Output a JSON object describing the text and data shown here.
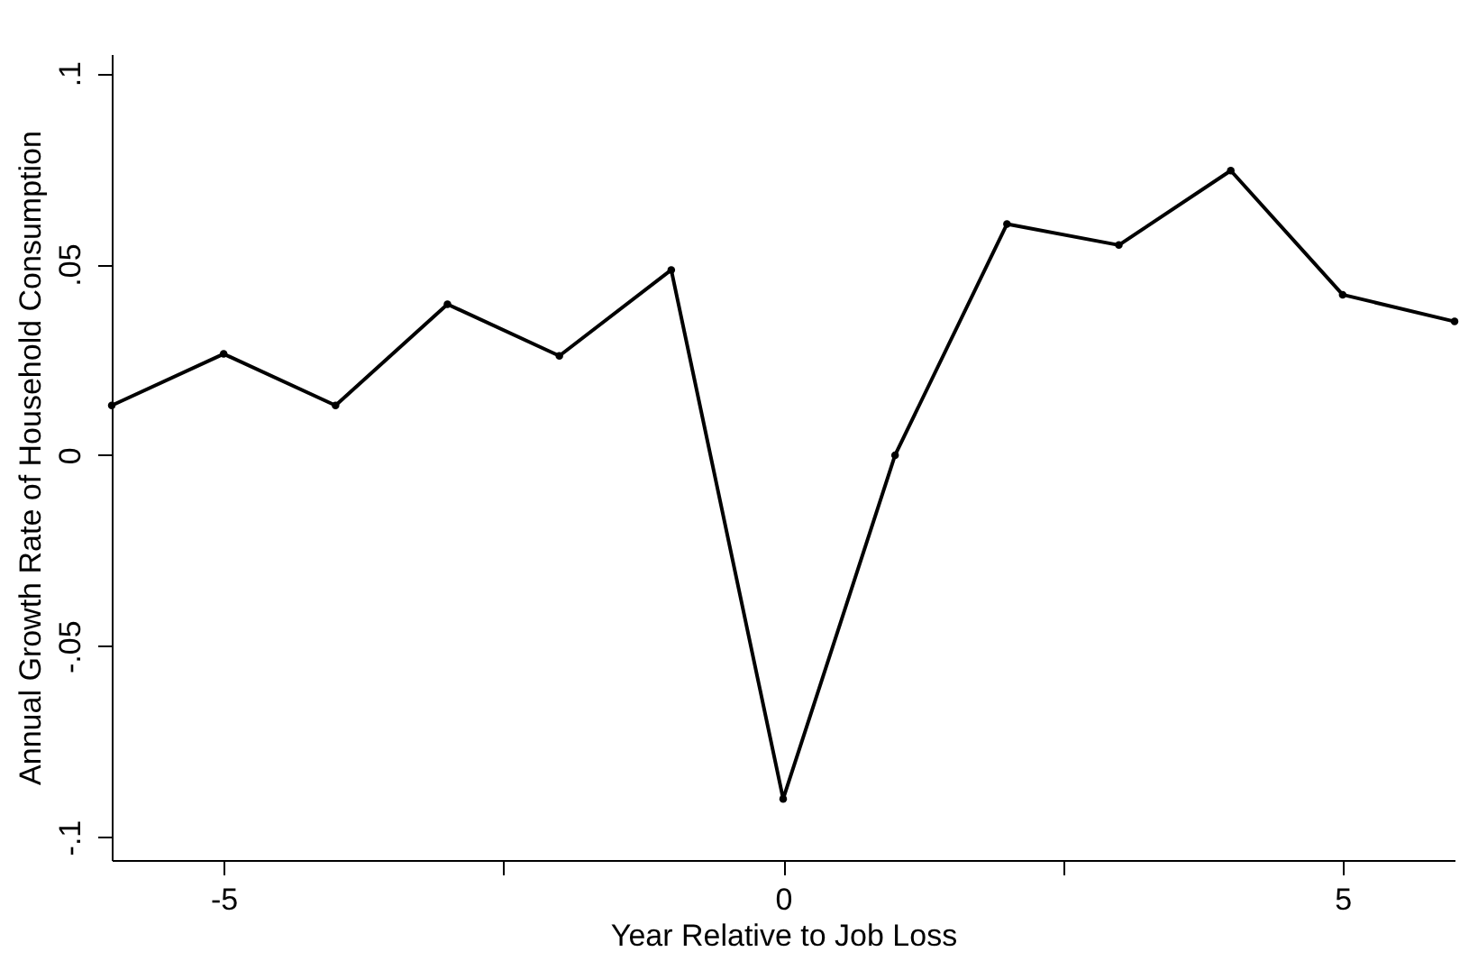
{
  "chart_data": {
    "type": "line",
    "xlabel": "Year Relative to Job Loss",
    "ylabel": "Annual Growth Rate of Household Consumption",
    "x": [
      -6,
      -5,
      -4,
      -3,
      -2,
      -1,
      0,
      1,
      2,
      3,
      4,
      5,
      6
    ],
    "series": [
      {
        "color": "#000000",
        "values": [
          0.013,
          0.0265,
          0.013,
          0.0395,
          0.026,
          0.0485,
          -0.09,
          0,
          0.0605,
          0.055,
          0.0745,
          0.042,
          0.035
        ]
      }
    ],
    "xlim": [
      -6,
      6
    ],
    "ylim": [
      -0.106,
      0.105
    ],
    "xticks": [
      -5,
      {
        "value": -2.5,
        "label": null
      },
      0,
      {
        "value": 2.5,
        "label": null
      },
      5
    ],
    "yticks": [
      {
        "value": -0.1,
        "label": "-.1"
      },
      {
        "value": -0.05,
        "label": "-.05"
      },
      0,
      {
        "value": 0.05,
        "label": ".05"
      },
      {
        "value": 0.1,
        "label": ".1"
      }
    ],
    "marker": "circle",
    "line_style": "solid",
    "grid": false
  }
}
